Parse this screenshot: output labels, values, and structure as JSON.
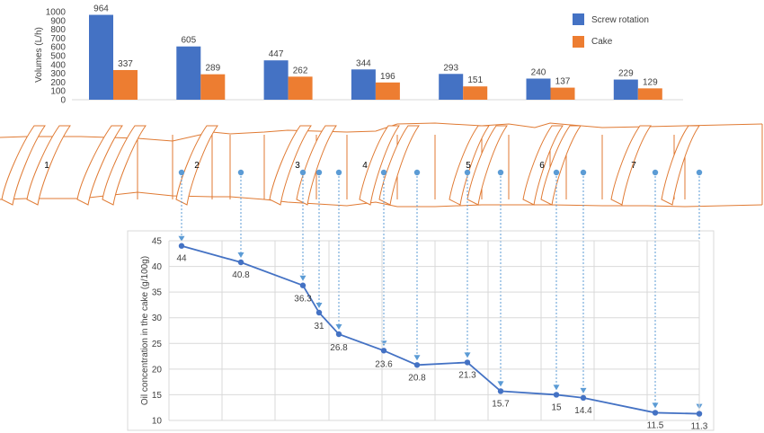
{
  "colors": {
    "screw_rotation": "#4472C4",
    "cake": "#ED7D31",
    "screw_outline": "#E07A33",
    "line": "#4472C4",
    "connector": "#5B9BD5",
    "grid": "#D9D9D9",
    "axis_text": "#404040"
  },
  "chart_data": [
    {
      "type": "bar",
      "ylabel": "Volumes (L/h)",
      "ylim": [
        0,
        1000
      ],
      "yticks": [
        "0",
        "100",
        "200",
        "300",
        "400",
        "500",
        "600",
        "700",
        "800",
        "900",
        "1000"
      ],
      "legend_position": "right",
      "categories": [
        "1",
        "2",
        "3",
        "4",
        "5",
        "6",
        "7"
      ],
      "series": [
        {
          "name": "Screw rotation",
          "values": [
            964,
            605,
            447,
            344,
            293,
            240,
            229
          ],
          "labels": [
            "964",
            "605",
            "447",
            "344",
            "293",
            "240",
            "229"
          ]
        },
        {
          "name": "Cake",
          "values": [
            337,
            289,
            262,
            196,
            151,
            137,
            129
          ],
          "labels": [
            "337",
            "289",
            "262",
            "196",
            "151",
            "137",
            "129"
          ]
        }
      ]
    },
    {
      "type": "line",
      "ylabel": "Oil concentration in the cake (g/100g)",
      "ylim": [
        10,
        45
      ],
      "yticks": [
        "10",
        "15",
        "20",
        "25",
        "30",
        "35",
        "40",
        "45"
      ],
      "grid": true,
      "values": [
        44,
        40.8,
        36.3,
        31,
        26.8,
        23.6,
        20.8,
        21.3,
        15.7,
        15,
        14.4,
        11.5,
        11.3
      ],
      "labels": [
        "44",
        "40.8",
        "36.3",
        "31",
        "26.8",
        "23.6",
        "20.8",
        "21.3",
        "15.7",
        "15",
        "14.4",
        "11.5",
        "11.3"
      ]
    }
  ],
  "screw_sections": [
    "1",
    "2",
    "3",
    "4",
    "5",
    "6",
    "7"
  ]
}
